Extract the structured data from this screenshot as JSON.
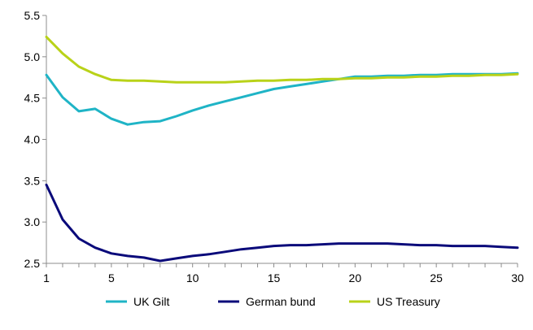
{
  "chart_data": {
    "type": "line",
    "xlim": [
      1,
      30
    ],
    "ylim": [
      2.5,
      5.5
    ],
    "x_ticks": [
      1,
      5,
      10,
      15,
      20,
      25,
      30
    ],
    "y_ticks": [
      2.5,
      3.0,
      3.5,
      4.0,
      4.5,
      5.0,
      5.5
    ],
    "y_tick_labels": [
      "2.5",
      "3.0",
      "3.5",
      "4.0",
      "4.5",
      "5.0",
      "5.5"
    ],
    "x_tick_labels": [
      "1",
      "5",
      "10",
      "15",
      "20",
      "25",
      "30"
    ],
    "grid": false,
    "legend_position": "bottom",
    "x": [
      1,
      2,
      3,
      4,
      5,
      6,
      7,
      8,
      9,
      10,
      11,
      12,
      13,
      14,
      15,
      16,
      17,
      18,
      19,
      20,
      21,
      22,
      23,
      24,
      25,
      26,
      27,
      28,
      29,
      30
    ],
    "series": [
      {
        "name": "UK Gilt",
        "color": "#1fb4c6",
        "values": [
          4.78,
          4.51,
          4.34,
          4.37,
          4.25,
          4.18,
          4.21,
          4.22,
          4.28,
          4.35,
          4.41,
          4.46,
          4.51,
          4.56,
          4.61,
          4.64,
          4.67,
          4.7,
          4.73,
          4.76,
          4.76,
          4.77,
          4.77,
          4.78,
          4.78,
          4.79,
          4.79,
          4.79,
          4.79,
          4.8
        ]
      },
      {
        "name": "German bund",
        "color": "#0a0a7a",
        "values": [
          3.45,
          3.03,
          2.8,
          2.69,
          2.62,
          2.59,
          2.57,
          2.53,
          2.56,
          2.59,
          2.61,
          2.64,
          2.67,
          2.69,
          2.71,
          2.72,
          2.72,
          2.73,
          2.74,
          2.74,
          2.74,
          2.74,
          2.73,
          2.72,
          2.72,
          2.71,
          2.71,
          2.71,
          2.7,
          2.69
        ]
      },
      {
        "name": "US Treasury",
        "color": "#b9d219",
        "values": [
          5.24,
          5.04,
          4.88,
          4.79,
          4.72,
          4.71,
          4.71,
          4.7,
          4.69,
          4.69,
          4.69,
          4.69,
          4.7,
          4.71,
          4.71,
          4.72,
          4.72,
          4.73,
          4.73,
          4.74,
          4.74,
          4.75,
          4.75,
          4.76,
          4.76,
          4.77,
          4.77,
          4.78,
          4.78,
          4.79
        ]
      }
    ]
  }
}
